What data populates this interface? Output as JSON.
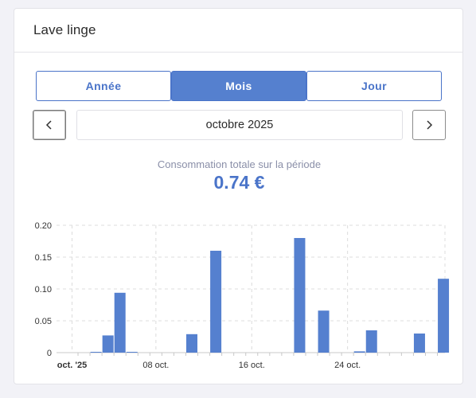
{
  "card": {
    "title": "Lave linge"
  },
  "period_tabs": [
    {
      "label": "Année",
      "active": false
    },
    {
      "label": "Mois",
      "active": true
    },
    {
      "label": "Jour",
      "active": false
    }
  ],
  "navigation": {
    "prev_icon": "chevron-left-icon",
    "next_icon": "chevron-right-icon",
    "current_period": "octobre 2025"
  },
  "summary": {
    "label": "Consommation totale sur la période",
    "value": "0.74 €"
  },
  "colors": {
    "accent": "#4a74c9",
    "bar": "#5580cf",
    "grid": "#dcdcdc"
  },
  "chart_data": {
    "type": "bar",
    "ylim": [
      0,
      0.2
    ],
    "yticks": [
      {
        "value": 0,
        "label": "0"
      },
      {
        "value": 0.05,
        "label": "0.05"
      },
      {
        "value": 0.1,
        "label": "0.10"
      },
      {
        "value": 0.15,
        "label": "0.15"
      },
      {
        "value": 0.2,
        "label": "0.20"
      }
    ],
    "xticks": [
      {
        "day": 1,
        "label": "oct. '25",
        "bold": true
      },
      {
        "day": 8,
        "label": "08 oct.",
        "bold": false
      },
      {
        "day": 16,
        "label": "16 oct.",
        "bold": false
      },
      {
        "day": 24,
        "label": "24 oct.",
        "bold": false
      }
    ],
    "days": [
      1,
      2,
      3,
      4,
      5,
      6,
      7,
      8,
      9,
      10,
      11,
      12,
      13,
      14,
      15,
      16,
      17,
      18,
      19,
      20,
      21,
      22,
      23,
      24,
      25,
      26,
      27,
      28,
      29,
      30,
      31
    ],
    "values": [
      0,
      0.001,
      0.027,
      0.094,
      0.001,
      0,
      0,
      0,
      0,
      0.029,
      0,
      0.16,
      0,
      0,
      0,
      0,
      0,
      0,
      0.18,
      0,
      0.066,
      0,
      0,
      0.002,
      0.035,
      0,
      0,
      0,
      0.03,
      0,
      0.116
    ]
  }
}
